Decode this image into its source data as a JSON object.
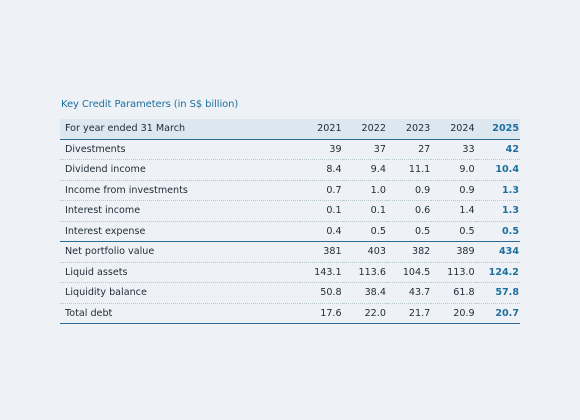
{
  "title": "Key Credit Parameters (in S$ billion)",
  "header": {
    "label": "For year ended 31 March",
    "years": [
      "2021",
      "2022",
      "2023",
      "2024",
      "2025"
    ]
  },
  "rows": [
    {
      "label": "Divestments",
      "values": [
        "39",
        "37",
        "27",
        "33",
        "42"
      ]
    },
    {
      "label": "Dividend income",
      "values": [
        "8.4",
        "9.4",
        "11.1",
        "9.0",
        "10.4"
      ]
    },
    {
      "label": "Income from investments",
      "values": [
        "0.7",
        "1.0",
        "0.9",
        "0.9",
        "1.3"
      ]
    },
    {
      "label": "Interest income",
      "values": [
        "0.1",
        "0.1",
        "0.6",
        "1.4",
        "1.3"
      ]
    },
    {
      "label": "Interest expense",
      "values": [
        "0.4",
        "0.5",
        "0.5",
        "0.5",
        "0.5"
      ]
    },
    {
      "label": "Net portfolio value",
      "values": [
        "381",
        "403",
        "382",
        "389",
        "434"
      ]
    },
    {
      "label": "Liquid assets",
      "values": [
        "143.1",
        "113.6",
        "104.5",
        "113.0",
        "124.2"
      ]
    },
    {
      "label": "Liquidity balance",
      "values": [
        "50.8",
        "38.4",
        "43.7",
        "61.8",
        "57.8"
      ]
    },
    {
      "label": "Total debt",
      "values": [
        "17.6",
        "22.0",
        "21.7",
        "20.9",
        "20.7"
      ]
    }
  ],
  "colors": {
    "accent": "#1d6f9e",
    "header_bg": "#dde7f0",
    "page_bg": "#eef2f6"
  }
}
